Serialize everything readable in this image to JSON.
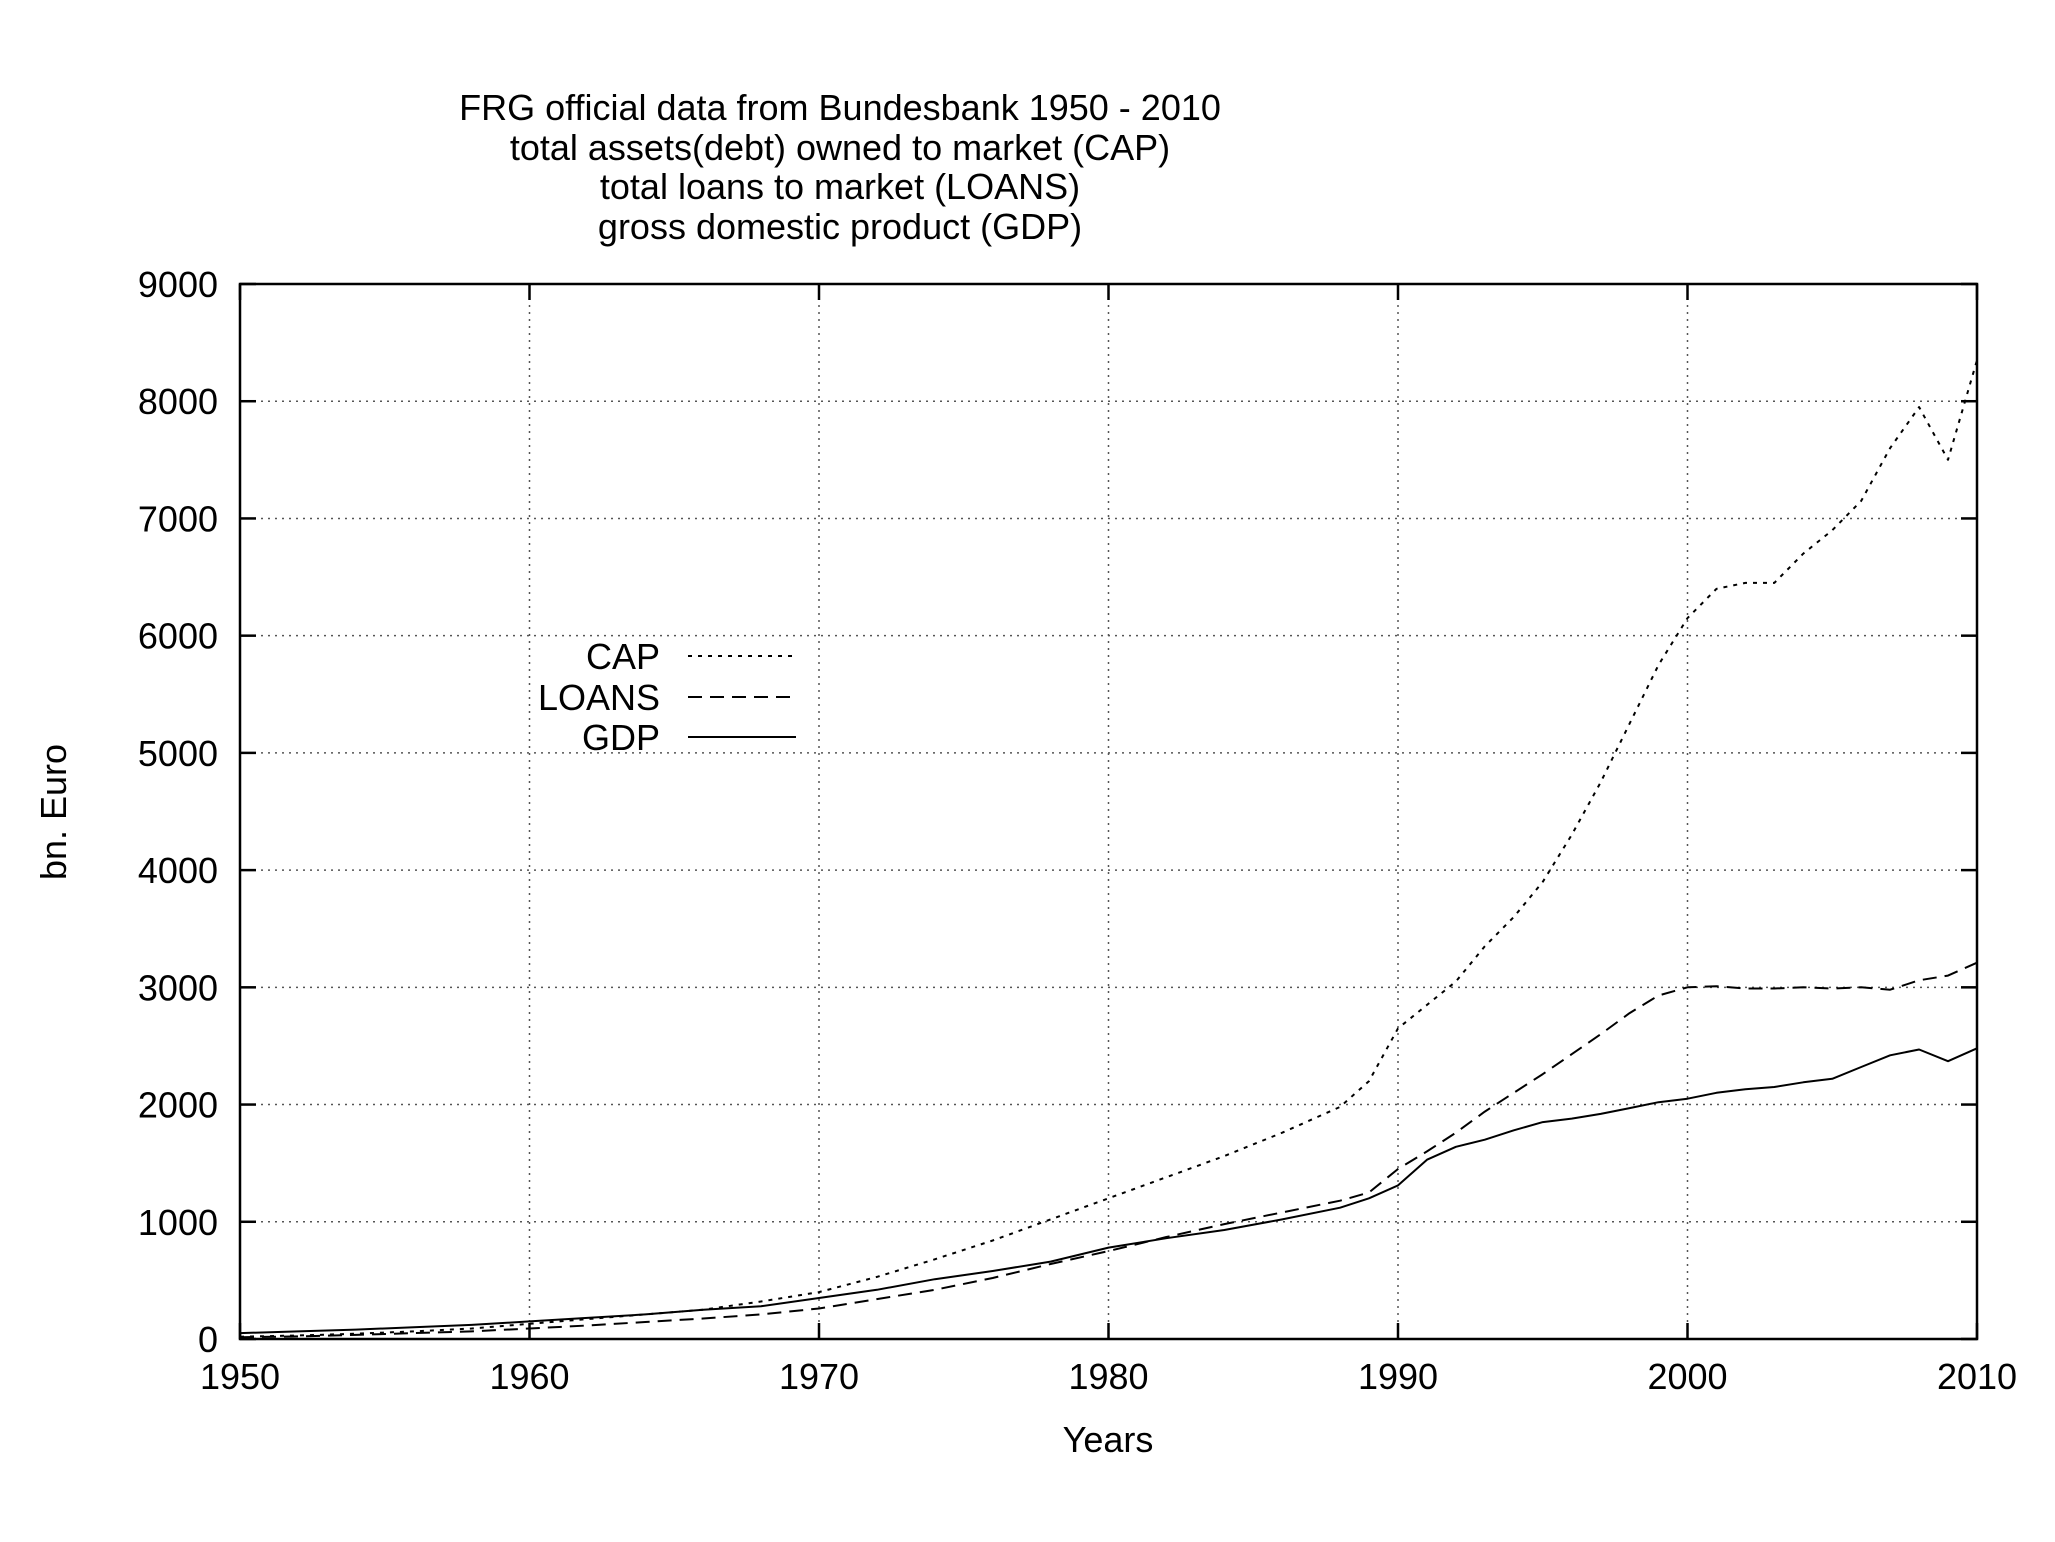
{
  "chart_data": {
    "type": "line",
    "title_lines": [
      "FRG official data from Bundesbank 1950 - 2010",
      "total assets(debt) owned to market (CAP)",
      "total loans to market (LOANS)",
      "gross domestic product (GDP)"
    ],
    "xlabel": "Years",
    "ylabel": "bn. Euro",
    "xlim": [
      1950,
      2010
    ],
    "ylim": [
      0,
      9000
    ],
    "x_ticks": [
      1950,
      1960,
      1970,
      1980,
      1990,
      2000,
      2010
    ],
    "y_ticks": [
      0,
      1000,
      2000,
      3000,
      4000,
      5000,
      6000,
      7000,
      8000,
      9000
    ],
    "grid": true,
    "legend_position": "upper-left inside plot",
    "series": [
      {
        "name": "CAP",
        "style": "dotted",
        "x": [
          1950,
          1952,
          1954,
          1956,
          1958,
          1960,
          1962,
          1964,
          1966,
          1968,
          1970,
          1972,
          1974,
          1976,
          1978,
          1980,
          1982,
          1984,
          1986,
          1988,
          1989,
          1990,
          1991,
          1992,
          1993,
          1994,
          1995,
          1996,
          1997,
          1998,
          1999,
          2000,
          2001,
          2002,
          2003,
          2004,
          2005,
          2006,
          2007,
          2008,
          2009,
          2010
        ],
        "values": [
          20,
          30,
          45,
          65,
          90,
          130,
          170,
          210,
          250,
          320,
          400,
          530,
          680,
          840,
          1020,
          1200,
          1380,
          1560,
          1760,
          1980,
          2200,
          2650,
          2850,
          3050,
          3350,
          3600,
          3900,
          4300,
          4750,
          5250,
          5750,
          6150,
          6400,
          6450,
          6450,
          6700,
          6900,
          7150,
          7600,
          7950,
          7500,
          8350
        ]
      },
      {
        "name": "LOANS",
        "style": "dashed",
        "x": [
          1950,
          1952,
          1954,
          1956,
          1958,
          1960,
          1962,
          1964,
          1966,
          1968,
          1970,
          1972,
          1974,
          1976,
          1978,
          1980,
          1982,
          1984,
          1986,
          1988,
          1989,
          1990,
          1991,
          1992,
          1993,
          1994,
          1995,
          1996,
          1997,
          1998,
          1999,
          2000,
          2001,
          2002,
          2003,
          2004,
          2005,
          2006,
          2007,
          2008,
          2009,
          2010
        ],
        "values": [
          15,
          22,
          35,
          50,
          65,
          90,
          115,
          145,
          175,
          210,
          260,
          340,
          420,
          520,
          640,
          750,
          870,
          980,
          1080,
          1180,
          1250,
          1450,
          1600,
          1760,
          1940,
          2100,
          2260,
          2430,
          2600,
          2780,
          2930,
          3000,
          3010,
          2990,
          2990,
          3000,
          2990,
          3000,
          2980,
          3060,
          3100,
          3210
        ]
      },
      {
        "name": "GDP",
        "style": "solid",
        "x": [
          1950,
          1952,
          1954,
          1956,
          1958,
          1960,
          1962,
          1964,
          1966,
          1968,
          1970,
          1972,
          1974,
          1976,
          1978,
          1980,
          1982,
          1984,
          1986,
          1988,
          1989,
          1990,
          1991,
          1992,
          1993,
          1994,
          1995,
          1996,
          1997,
          1998,
          1999,
          2000,
          2001,
          2002,
          2003,
          2004,
          2005,
          2006,
          2007,
          2008,
          2009,
          2010
        ],
        "values": [
          50,
          65,
          80,
          100,
          120,
          150,
          180,
          210,
          250,
          280,
          350,
          420,
          510,
          580,
          660,
          780,
          860,
          930,
          1020,
          1120,
          1200,
          1310,
          1530,
          1640,
          1700,
          1780,
          1850,
          1880,
          1920,
          1970,
          2020,
          2050,
          2100,
          2130,
          2150,
          2190,
          2220,
          2320,
          2420,
          2470,
          2370,
          2480
        ]
      }
    ]
  }
}
